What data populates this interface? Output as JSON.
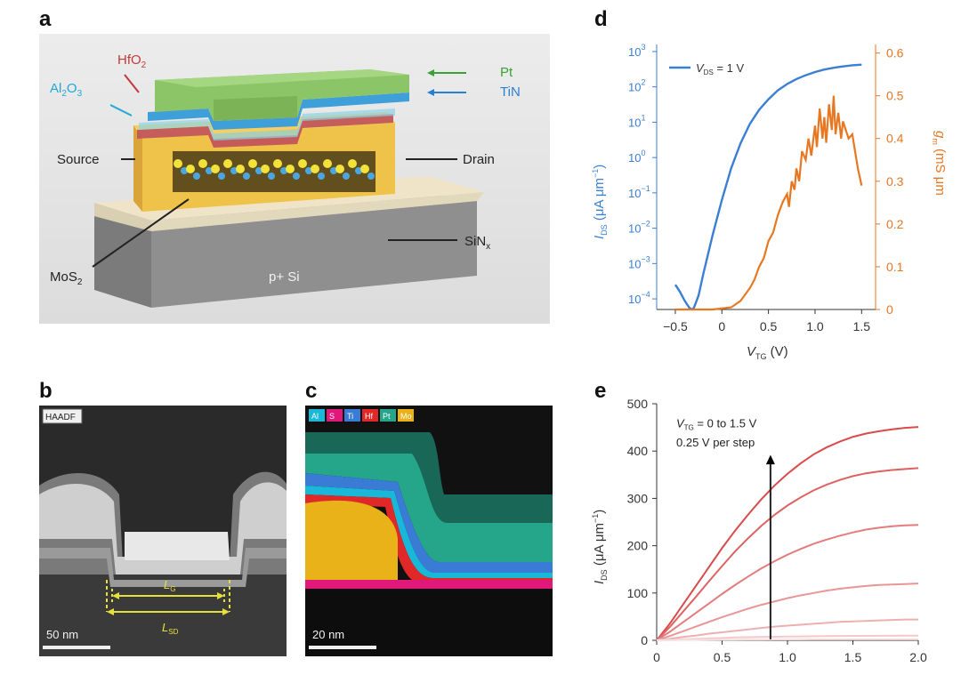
{
  "panels": {
    "a": {
      "letter": "a",
      "layers": {
        "pt": "Pt",
        "tin": "TiN",
        "hfo2": "HfO",
        "hfo2_sub": "2",
        "al2o3_a": "Al",
        "al2o3_sub1": "2",
        "al2o3_b": "O",
        "al2o3_sub2": "3",
        "source": "Source",
        "drain": "Drain",
        "mos2": "MoS",
        "mos2_sub": "2",
        "sinx": "SiN",
        "sinx_sub": "x",
        "substrate": "p+ Si"
      },
      "colors": {
        "pt": "#8cc567",
        "tin": "#3f9fd8",
        "hfo2": "#c0505a",
        "al2o3": "#8fd3e6",
        "contact": "#efc34a",
        "sinx": "#efe4c8",
        "substrate": "#8d8d8d",
        "arrow_pt": "#3aa13a",
        "arrow_tin": "#2a7fd0",
        "arrow_hfo2": "#c03a3a",
        "arrow_al2o3": "#22a7d8"
      }
    },
    "b": {
      "letter": "b",
      "tag": "HAADF",
      "lg_main": "L",
      "lg_sub": "G",
      "lsd_main": "L",
      "lsd_sub": "SD",
      "scale": "50 nm"
    },
    "c": {
      "letter": "c",
      "legend": [
        {
          "label": "Al",
          "color": "#19b8d8"
        },
        {
          "label": "S",
          "color": "#e0187a"
        },
        {
          "label": "Ti",
          "color": "#3a7bd5"
        },
        {
          "label": "Hf",
          "color": "#e02828"
        },
        {
          "label": "Pt",
          "color": "#25a58a"
        },
        {
          "label": "Mo",
          "color": "#e8b218"
        }
      ],
      "scale": "20 nm"
    },
    "d": {
      "letter": "d",
      "legend_main": "V",
      "legend_sub": "DS",
      "legend_val": " = 1 V",
      "left_axis_colors": {
        "ids": "#3b7fd4",
        "gm": "#e87722"
      }
    },
    "e": {
      "letter": "e",
      "annot_line1_main": "V",
      "annot_line1_sub": "TG",
      "annot_line1_rest": " = 0 to 1.5 V",
      "annot_line2": "0.25 V per step"
    }
  },
  "chart_data": [
    {
      "id": "d",
      "type": "line",
      "xlabel_main": "V",
      "xlabel_sub": "TG",
      "xlabel_unit": " (V)",
      "ylabel_main": "I",
      "ylabel_sub": "DS",
      "ylabel_unit": " (μA μm",
      "ylabel_sup": "−1",
      "ylabel_close": ")",
      "y2label_main": "g",
      "y2label_sub": "m",
      "y2label_unit": " (mS μm",
      "xticks": [
        "−0.5",
        "0",
        "0.5",
        "1.0",
        "1.5"
      ],
      "xtick_values": [
        -0.5,
        0,
        0.5,
        1.0,
        1.5
      ],
      "xlim": [
        -0.7,
        1.65
      ],
      "yticks_exp": [
        "3",
        "2",
        "1",
        "0",
        "−1",
        "−2",
        "−3",
        "−4"
      ],
      "ytick_values": [
        3,
        2,
        1,
        0,
        -1,
        -2,
        -3,
        -4
      ],
      "ylim_log10": [
        -4.3,
        3.2
      ],
      "y2ticks": [
        "0.6",
        "0.5",
        "0.4",
        "0.3",
        "0.2",
        "0.1",
        "0"
      ],
      "y2tick_values": [
        0.6,
        0.5,
        0.4,
        0.3,
        0.2,
        0.1,
        0
      ],
      "y2lim": [
        0,
        0.62
      ],
      "series": [
        {
          "name": "I_DS",
          "axis": "left",
          "color": "#3b7fd4",
          "x": [
            -0.5,
            -0.45,
            -0.4,
            -0.35,
            -0.32,
            -0.3,
            -0.25,
            -0.2,
            -0.1,
            0.0,
            0.1,
            0.2,
            0.3,
            0.4,
            0.5,
            0.6,
            0.7,
            0.8,
            0.9,
            1.0,
            1.1,
            1.2,
            1.3,
            1.4,
            1.5
          ],
          "log10_y": [
            -3.6,
            -3.8,
            -4.05,
            -4.25,
            -4.3,
            -4.25,
            -3.9,
            -3.3,
            -2.2,
            -1.2,
            -0.3,
            0.4,
            0.95,
            1.35,
            1.65,
            1.9,
            2.08,
            2.22,
            2.33,
            2.42,
            2.49,
            2.54,
            2.58,
            2.61,
            2.63
          ]
        },
        {
          "name": "g_m",
          "axis": "right",
          "color": "#e87722",
          "x": [
            -0.5,
            -0.1,
            0.1,
            0.2,
            0.3,
            0.35,
            0.4,
            0.45,
            0.5,
            0.55,
            0.6,
            0.65,
            0.7,
            0.72,
            0.75,
            0.78,
            0.8,
            0.83,
            0.86,
            0.9,
            0.93,
            0.96,
            1.0,
            1.02,
            1.05,
            1.08,
            1.1,
            1.12,
            1.15,
            1.18,
            1.2,
            1.22,
            1.25,
            1.28,
            1.3,
            1.33,
            1.36,
            1.4,
            1.43,
            1.46,
            1.5
          ],
          "y": [
            0,
            0,
            0.005,
            0.02,
            0.05,
            0.07,
            0.1,
            0.12,
            0.16,
            0.18,
            0.22,
            0.25,
            0.27,
            0.24,
            0.3,
            0.28,
            0.33,
            0.3,
            0.37,
            0.35,
            0.4,
            0.36,
            0.43,
            0.38,
            0.47,
            0.4,
            0.45,
            0.39,
            0.48,
            0.42,
            0.5,
            0.41,
            0.46,
            0.4,
            0.44,
            0.42,
            0.4,
            0.41,
            0.37,
            0.33,
            0.29
          ]
        }
      ]
    },
    {
      "id": "e",
      "type": "line",
      "xlabel": "",
      "ylabel_main": "I",
      "ylabel_sub": "DS",
      "ylabel_unit": " (μA μm",
      "ylabel_sup": "−1",
      "ylabel_close": ")",
      "xticks": [
        "0",
        "0.5",
        "1.0",
        "1.5",
        "2.0"
      ],
      "xtick_values": [
        0,
        0.5,
        1.0,
        1.5,
        2.0
      ],
      "xlim": [
        0,
        2.0
      ],
      "yticks": [
        "0",
        "100",
        "200",
        "300",
        "400",
        "500"
      ],
      "ytick_values": [
        0,
        100,
        200,
        300,
        400,
        500
      ],
      "ylim": [
        0,
        500
      ],
      "x": [
        0,
        0.1,
        0.2,
        0.3,
        0.4,
        0.5,
        0.6,
        0.7,
        0.8,
        0.9,
        1.0,
        1.1,
        1.2,
        1.3,
        1.4,
        1.5,
        1.6,
        1.7,
        1.8,
        1.9,
        2.0
      ],
      "series": [
        {
          "color": "#d94a4a",
          "y": [
            0,
            35,
            75,
            115,
            155,
            195,
            232,
            266,
            298,
            327,
            352,
            374,
            393,
            408,
            420,
            430,
            437,
            442,
            446,
            449,
            451
          ]
        },
        {
          "color": "#de6262",
          "y": [
            0,
            28,
            60,
            92,
            125,
            157,
            188,
            216,
            242,
            265,
            285,
            302,
            317,
            329,
            339,
            347,
            353,
            357,
            360,
            362,
            364
          ]
        },
        {
          "color": "#e37c7c",
          "y": [
            0,
            18,
            38,
            58,
            78,
            98,
            117,
            135,
            152,
            167,
            181,
            193,
            204,
            213,
            221,
            228,
            234,
            238,
            241,
            243,
            244
          ]
        },
        {
          "color": "#e89696",
          "y": [
            0,
            9,
            19,
            29,
            39,
            49,
            58,
            67,
            75,
            82,
            89,
            95,
            100,
            105,
            109,
            112,
            115,
            117,
            118,
            119,
            120
          ]
        },
        {
          "color": "#edb0b0",
          "y": [
            0,
            3,
            7,
            10,
            14,
            17,
            20,
            23,
            26,
            29,
            31,
            33,
            35,
            37,
            39,
            40,
            41,
            42,
            43,
            44,
            44
          ]
        },
        {
          "color": "#f2caca",
          "y": [
            0,
            1,
            2,
            3,
            4,
            5,
            6,
            6.5,
            7,
            7.5,
            8,
            8.3,
            8.6,
            8.9,
            9.1,
            9.3,
            9.5,
            9.6,
            9.7,
            9.8,
            9.9
          ]
        },
        {
          "color": "#f7e0e0",
          "y": [
            0,
            0.3,
            0.6,
            0.9,
            1.1,
            1.3,
            1.5,
            1.6,
            1.7,
            1.8,
            1.9,
            1.95,
            2,
            2,
            2,
            2,
            2,
            2,
            2,
            2,
            2
          ]
        }
      ]
    }
  ]
}
